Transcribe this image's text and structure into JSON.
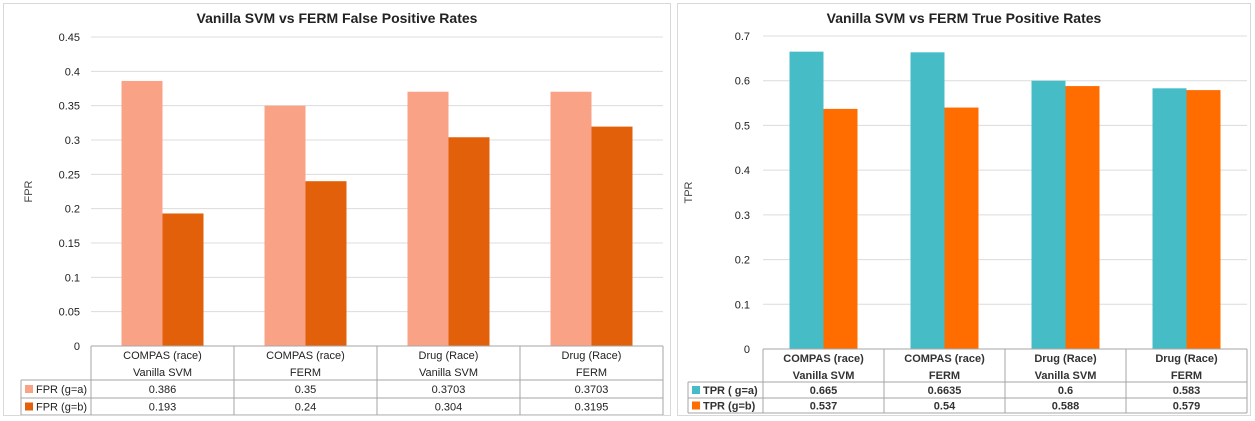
{
  "chart_data": [
    {
      "type": "bar",
      "title": "Vanilla SVM vs FERM False Positive Rates",
      "ylabel": "FPR",
      "xlabel": "",
      "ylim": [
        0,
        0.45
      ],
      "yticks": [
        "0",
        "0.05",
        "0.1",
        "0.15",
        "0.2",
        "0.25",
        "0.3",
        "0.35",
        "0.4",
        "0.45"
      ],
      "grid": true,
      "legend": "data-table",
      "categories": [
        [
          "COMPAS (race)",
          "Vanilla SVM"
        ],
        [
          "COMPAS (race)",
          "FERM"
        ],
        [
          "Drug (Race)",
          "Vanilla SVM"
        ],
        [
          "Drug (Race)",
          "FERM"
        ]
      ],
      "series": [
        {
          "name": "FPR (g=a)",
          "color": "#f9a285",
          "values": [
            0.386,
            0.35,
            0.3703,
            0.3703
          ],
          "labels": [
            "0.386",
            "0.35",
            "0.3703",
            "0.3703"
          ]
        },
        {
          "name": "FPR (g=b)",
          "color": "#e2600a",
          "values": [
            0.193,
            0.24,
            0.304,
            0.3195
          ],
          "labels": [
            "0.193",
            "0.24",
            "0.304",
            "0.3195"
          ]
        }
      ]
    },
    {
      "type": "bar",
      "title": "Vanilla SVM vs FERM True Positive Rates",
      "ylabel": "TPR",
      "xlabel": "",
      "ylim": [
        0,
        0.7
      ],
      "yticks": [
        "0",
        "0.1",
        "0.2",
        "0.3",
        "0.4",
        "0.5",
        "0.6",
        "0.7"
      ],
      "grid": true,
      "legend": "data-table",
      "categories": [
        [
          "COMPAS (race)",
          "Vanilla SVM"
        ],
        [
          "COMPAS (race)",
          "FERM"
        ],
        [
          "Drug (Race)",
          "Vanilla SVM"
        ],
        [
          "Drug (Race)",
          "FERM"
        ]
      ],
      "series": [
        {
          "name": "TPR ( g=a)",
          "color": "#46bdc6",
          "values": [
            0.665,
            0.6635,
            0.6,
            0.583
          ],
          "labels": [
            "0.665",
            "0.6635",
            "0.6",
            "0.583"
          ]
        },
        {
          "name": "TPR (g=b)",
          "color": "#ff6d01",
          "values": [
            0.537,
            0.54,
            0.588,
            0.579
          ],
          "labels": [
            "0.537",
            "0.54",
            "0.588",
            "0.579"
          ]
        }
      ]
    }
  ]
}
